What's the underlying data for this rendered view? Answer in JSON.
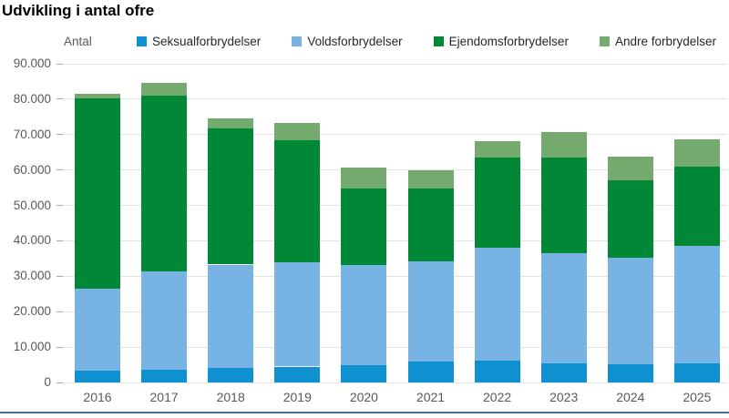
{
  "header": {
    "title": "Udvikling i antal ofre"
  },
  "chart_data": {
    "type": "bar",
    "stacked": true,
    "title": "Udvikling i antal ofre",
    "ylabel": "Antal",
    "xlabel": "",
    "categories": [
      "2016",
      "2017",
      "2018",
      "2019",
      "2020",
      "2021",
      "2022",
      "2023",
      "2024",
      "2025"
    ],
    "series": [
      {
        "name": "Seksualforbrydelser",
        "color": "#0e90d1",
        "values": [
          3400,
          3600,
          4000,
          4500,
          4800,
          5800,
          6100,
          5300,
          5100,
          5500
        ]
      },
      {
        "name": "Voldsforbrydelser",
        "color": "#77b4e3",
        "values": [
          23000,
          27800,
          29300,
          29500,
          28400,
          28300,
          32000,
          31200,
          30200,
          33000
        ]
      },
      {
        "name": "Ejendomsforbrydelser",
        "color": "#008837",
        "values": [
          53800,
          49700,
          38500,
          34300,
          21500,
          20700,
          25300,
          26900,
          21900,
          22500
        ]
      },
      {
        "name": "Andre forbrydelser",
        "color": "#74aa6d",
        "values": [
          1400,
          3400,
          2900,
          4900,
          6100,
          5200,
          4700,
          7400,
          6500,
          7600
        ]
      }
    ],
    "totals": [
      81600,
      84500,
      74700,
      73200,
      60800,
      60000,
      68100,
      70800,
      63700,
      68600
    ],
    "ylim": [
      0,
      90000
    ],
    "ytick_step": 10000,
    "ytick_labels": [
      "0",
      "10.000",
      "20.000",
      "30.000",
      "40.000",
      "50.000",
      "60.000",
      "70.000",
      "80.000",
      "90.000"
    ],
    "grid": "horizontal",
    "legend_position": "top"
  },
  "colors": {
    "background": "#ffffff",
    "grid": "#e4e3df",
    "tick": "#a9a8a2",
    "axis_text": "#595959",
    "legend_text": "#262626",
    "title_text": "#000000",
    "footer_rule": "#44708e"
  }
}
